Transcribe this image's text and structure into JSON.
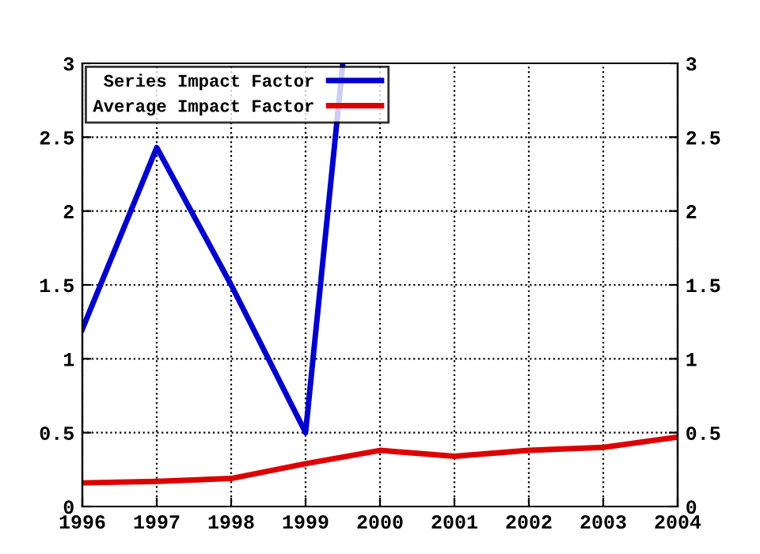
{
  "chart_data": {
    "type": "line",
    "x": [
      1996,
      1997,
      1998,
      1999,
      2000,
      2001,
      2002,
      2003,
      2004
    ],
    "series": [
      {
        "name": "Series Impact Factor",
        "color": "#0000cc",
        "x": [
          1996,
          1997,
          1998,
          1999,
          1999.5
        ],
        "values": [
          1.2,
          2.43,
          1.5,
          0.5,
          3
        ]
      },
      {
        "name": "Average Impact Factor",
        "color": "#dd0000",
        "values": [
          0.16,
          0.17,
          0.19,
          0.29,
          0.38,
          0.34,
          0.38,
          0.4,
          0.47
        ]
      }
    ],
    "xlim": [
      1996,
      2004
    ],
    "xticks": [
      1996,
      1997,
      1998,
      1999,
      2000,
      2001,
      2002,
      2003,
      2004
    ],
    "ylim": [
      0,
      3
    ],
    "yticks": [
      0,
      0.5,
      1,
      1.5,
      2,
      2.5,
      3
    ],
    "y2lim": [
      0,
      3
    ],
    "y2ticks": [
      0,
      0.5,
      1,
      1.5,
      2,
      2.5,
      3
    ],
    "grid": true,
    "legend": "top left",
    "line_style": "solid",
    "marker": "none"
  }
}
